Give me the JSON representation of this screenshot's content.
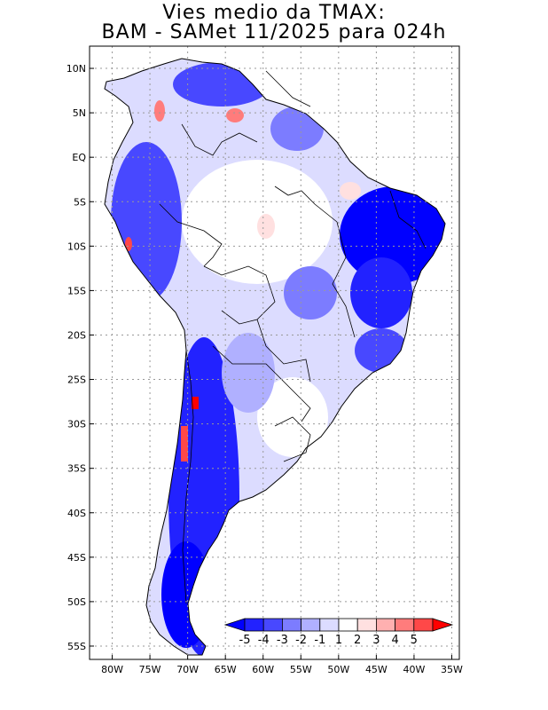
{
  "title": {
    "line1": "Vies medio da TMAX:",
    "line2": "BAM - SAMet 11/2025  para 024h"
  },
  "map": {
    "region": "South America",
    "lon_range": [
      -83,
      -34
    ],
    "lat_range": [
      12.5,
      -56.5
    ],
    "x_ticks": [
      "80W",
      "75W",
      "70W",
      "65W",
      "60W",
      "55W",
      "50W",
      "45W",
      "40W",
      "35W"
    ],
    "y_ticks": [
      "10N",
      "5N",
      "EQ",
      "5S",
      "10S",
      "15S",
      "20S",
      "25S",
      "30S",
      "35S",
      "40S",
      "45S",
      "50S",
      "55S"
    ],
    "gridlines": "dotted"
  },
  "colorbar": {
    "labels": [
      "-5",
      "-4",
      "-3",
      "-2",
      "-1",
      "1",
      "2",
      "3",
      "4",
      "5"
    ],
    "colors": [
      "#0000ff",
      "#2222ff",
      "#4848ff",
      "#7c7cff",
      "#b0b0ff",
      "#dcdcff",
      "#ffffff",
      "#ffe0e0",
      "#ffb0b0",
      "#ff7c7c",
      "#ff4848",
      "#ff0000"
    ]
  }
}
